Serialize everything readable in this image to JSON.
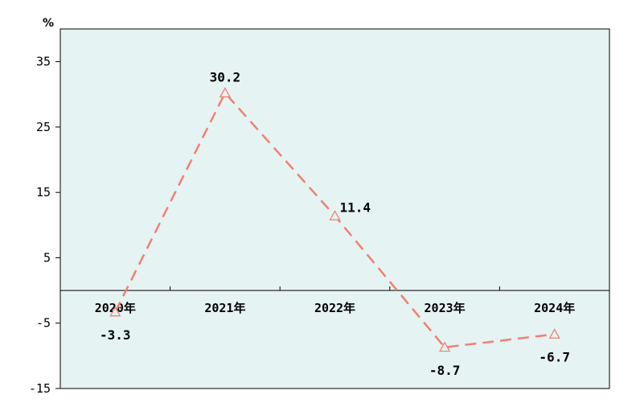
{
  "chart_data": {
    "type": "line",
    "unit": "%",
    "categories": [
      "2020年",
      "2021年",
      "2022年",
      "2023年",
      "2024年"
    ],
    "values": [
      -3.3,
      30.2,
      11.4,
      -8.7,
      -6.7
    ],
    "data_labels": [
      "-3.3",
      "30.2",
      "11.4",
      "-8.7",
      "-6.7"
    ],
    "ylim": [
      -15,
      40
    ],
    "yticks": [
      -15,
      -5,
      5,
      15,
      25,
      35
    ],
    "ytick_labels": [
      "-15",
      "-5",
      "5",
      "15",
      "25",
      "35"
    ],
    "grid": false,
    "legend": "none",
    "marker": "open-triangle",
    "line_style": "dashed"
  },
  "colors": {
    "plot_background": "#e6f3f3",
    "series_line": "#f08070",
    "axis": "#000000"
  }
}
